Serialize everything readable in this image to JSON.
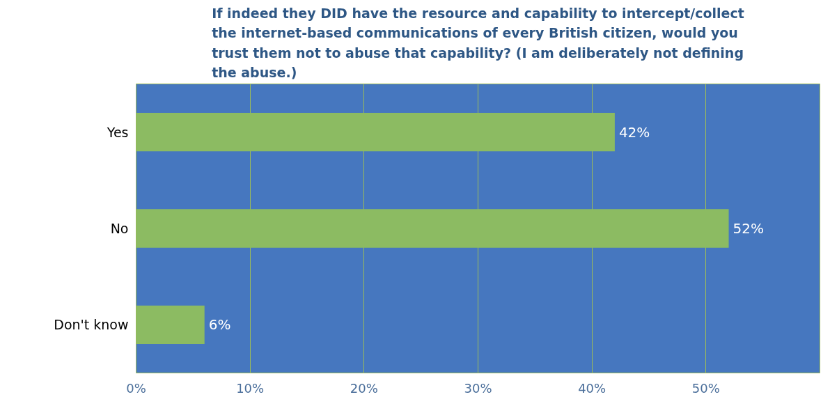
{
  "chart_data": {
    "type": "bar",
    "orientation": "horizontal",
    "title": "If indeed they DID have the resource and capability to intercept/collect the internet-based communications of every British citizen, would you trust them not to abuse that capability? (I am deliberately not defining the abuse.)",
    "categories": [
      "Yes",
      "No",
      "Don't know"
    ],
    "values": [
      42,
      52,
      6
    ],
    "value_labels": [
      "42%",
      "52%",
      "6%"
    ],
    "color": "#8cbb62",
    "xlim": [
      0,
      60
    ],
    "xticks": [
      {
        "value": 0,
        "label": "0%"
      },
      {
        "value": 10,
        "label": "10%"
      },
      {
        "value": 20,
        "label": "20%"
      },
      {
        "value": 30,
        "label": "30%"
      },
      {
        "value": 40,
        "label": "40%"
      },
      {
        "value": 50,
        "label": "50%"
      }
    ],
    "grid": "x"
  }
}
